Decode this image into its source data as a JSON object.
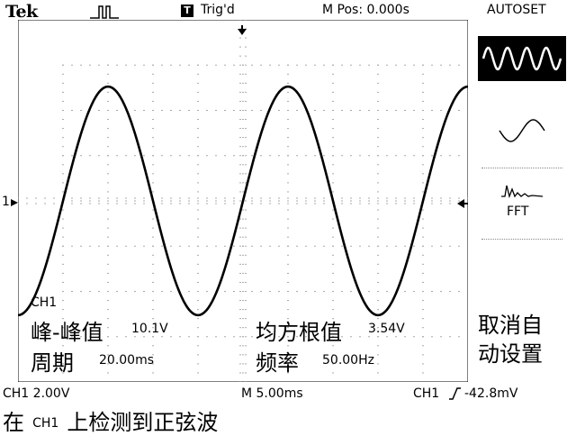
{
  "header": {
    "brand": "Tek",
    "trigger_state": "Trig'd",
    "trigger_badge": "T",
    "m_pos": "M Pos: 0.000s",
    "autoset": "AUTOSET"
  },
  "waveform": {
    "channel_marker": "1",
    "frequency_hz": 50.0,
    "time_per_div_ms": 5.0,
    "peak_to_peak_v": 10.1,
    "volts_per_div": 2.0
  },
  "measurements": {
    "channel": "CH1",
    "pk_pk_label": "峰-峰值",
    "pk_pk_value": "10.1V",
    "rms_label": "均方根值",
    "rms_value": "3.54V",
    "period_label": "周期",
    "period_value": "20.00ms",
    "freq_label": "频率",
    "freq_value": "50.00Hz"
  },
  "side_menu": {
    "cancel_line1": "取消自",
    "cancel_line2": "动设置",
    "fft_label": "FFT",
    "options": [
      "multi-cycle-icon",
      "single-cycle-icon",
      "fft-icon"
    ]
  },
  "status": {
    "ch1_scale": "CH1  2.00V",
    "timebase": "M 5.00ms",
    "trigger_ch": "CH1",
    "trigger_level": "-42.8mV",
    "message_prefix": "在",
    "message_channel": "CH1",
    "message_suffix": "上检测到正弦波"
  }
}
